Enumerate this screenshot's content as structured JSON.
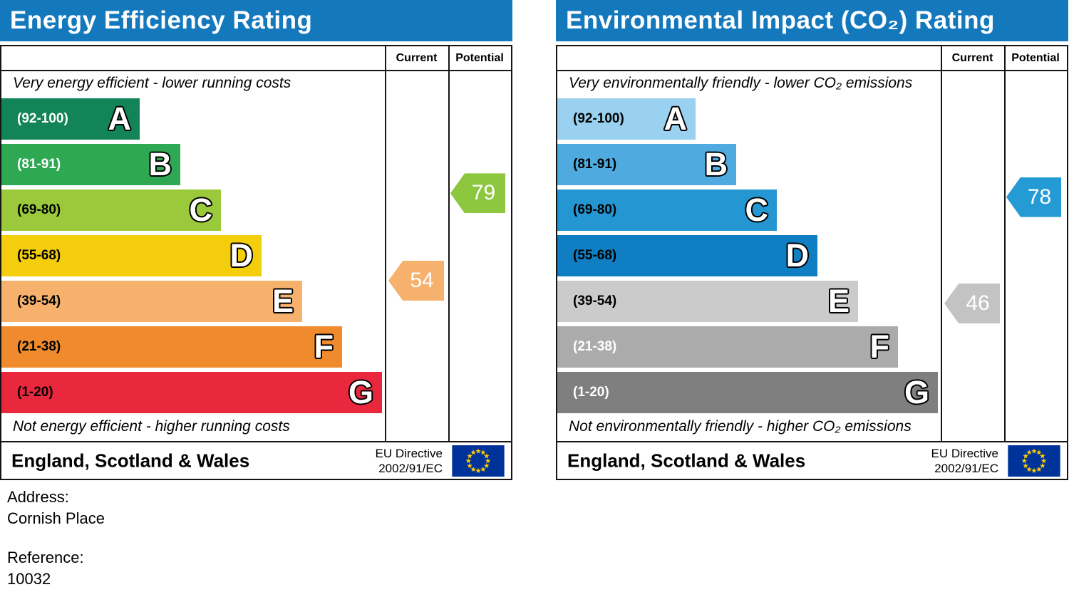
{
  "chart_data": [
    {
      "type": "bar",
      "title": "Energy Efficiency Rating",
      "categories": [
        "A (92-100)",
        "B (81-91)",
        "C (69-80)",
        "D (55-68)",
        "E (39-54)",
        "F (21-38)",
        "G (1-20)"
      ],
      "scale": [
        1,
        100
      ],
      "series": [
        {
          "name": "Current",
          "values": [
            54
          ],
          "band": "E"
        },
        {
          "name": "Potential",
          "values": [
            79
          ],
          "band": "C"
        }
      ],
      "annotations": [
        "Very energy efficient - lower running costs",
        "Not energy efficient - higher running costs"
      ],
      "footer": "England, Scotland & Wales",
      "directive": "EU Directive 2002/91/EC"
    },
    {
      "type": "bar",
      "title": "Environmental Impact (CO₂) Rating",
      "categories": [
        "A (92-100)",
        "B (81-91)",
        "C (69-80)",
        "D (55-68)",
        "E (39-54)",
        "F (21-38)",
        "G (1-20)"
      ],
      "scale": [
        1,
        100
      ],
      "series": [
        {
          "name": "Current",
          "values": [
            46
          ],
          "band": "E"
        },
        {
          "name": "Potential",
          "values": [
            78
          ],
          "band": "C"
        }
      ],
      "annotations": [
        "Very environmentally friendly - lower CO₂ emissions",
        "Not environmentally friendly - higher CO₂ emissions"
      ],
      "footer": "England, Scotland & Wales",
      "directive": "EU Directive 2002/91/EC"
    }
  ],
  "panels": [
    {
      "title": "Energy Efficiency Rating",
      "columns": {
        "current": "Current",
        "potential": "Potential"
      },
      "top_note": "Very energy efficient - lower running costs",
      "bottom_note": "Not energy efficient - higher running costs",
      "bands": [
        {
          "range": "(92-100)",
          "letter": "A",
          "min": 92,
          "max": 100,
          "color": "#128457",
          "text_color": "#ffffff"
        },
        {
          "range": "(81-91)",
          "letter": "B",
          "min": 81,
          "max": 91,
          "color": "#2ea852",
          "text_color": "#ffffff"
        },
        {
          "range": "(69-80)",
          "letter": "C",
          "min": 69,
          "max": 80,
          "color": "#9aca3b",
          "text_color": "#000000"
        },
        {
          "range": "(55-68)",
          "letter": "D",
          "min": 55,
          "max": 68,
          "color": "#f4cd0d",
          "text_color": "#000000"
        },
        {
          "range": "(39-54)",
          "letter": "E",
          "min": 39,
          "max": 54,
          "color": "#f6b26d",
          "text_color": "#000000"
        },
        {
          "range": "(21-38)",
          "letter": "F",
          "min": 21,
          "max": 38,
          "color": "#ef8b2c",
          "text_color": "#000000"
        },
        {
          "range": "(1-20)",
          "letter": "G",
          "min": 1,
          "max": 20,
          "color": "#e9283e",
          "text_color": "#000000"
        }
      ],
      "current": {
        "value": 54,
        "color": "#f6b26d"
      },
      "potential": {
        "value": 79,
        "color": "#8dc63f"
      },
      "footer": {
        "region": "England, Scotland & Wales",
        "directive_line1": "EU Directive",
        "directive_line2": "2002/91/EC"
      }
    },
    {
      "title": "Environmental Impact (CO₂) Rating",
      "columns": {
        "current": "Current",
        "potential": "Potential"
      },
      "top_note": "Very environmentally friendly - lower CO₂ emissions",
      "bottom_note": "Not environmentally friendly - higher CO₂ emissions",
      "bands": [
        {
          "range": "(92-100)",
          "letter": "A",
          "min": 92,
          "max": 100,
          "color": "#9ad0f0",
          "text_color": "#000000"
        },
        {
          "range": "(81-91)",
          "letter": "B",
          "min": 81,
          "max": 91,
          "color": "#4fabdf",
          "text_color": "#000000"
        },
        {
          "range": "(69-80)",
          "letter": "C",
          "min": 69,
          "max": 80,
          "color": "#2496d1",
          "text_color": "#000000"
        },
        {
          "range": "(55-68)",
          "letter": "D",
          "min": 55,
          "max": 68,
          "color": "#0f7ec2",
          "text_color": "#000000"
        },
        {
          "range": "(39-54)",
          "letter": "E",
          "min": 39,
          "max": 54,
          "color": "#cbcbcb",
          "text_color": "#000000"
        },
        {
          "range": "(21-38)",
          "letter": "F",
          "min": 21,
          "max": 38,
          "color": "#ababab",
          "text_color": "#ffffff"
        },
        {
          "range": "(1-20)",
          "letter": "G",
          "min": 1,
          "max": 20,
          "color": "#7f7f7f",
          "text_color": "#ffffff"
        }
      ],
      "current": {
        "value": 46,
        "color": "#c3c3c3"
      },
      "potential": {
        "value": 78,
        "color": "#259bd6"
      },
      "footer": {
        "region": "England, Scotland & Wales",
        "directive_line1": "EU Directive",
        "directive_line2": "2002/91/EC"
      }
    }
  ],
  "eu_flag": {
    "background": "#003399",
    "stars": "#ffcc00"
  },
  "header_color": "#1478bd",
  "address": {
    "label": "Address:",
    "value": "Cornish Place",
    "reference_label": "Reference:",
    "reference_value": "10032"
  }
}
